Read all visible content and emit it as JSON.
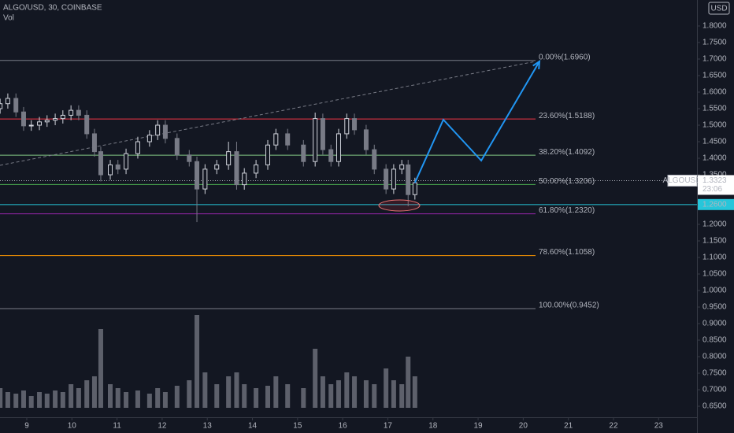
{
  "chart_data": {
    "type": "candlestick",
    "title": "ALGO/USD, 30, COINBASE",
    "currency": "USD",
    "volume_label": "Vol",
    "xlim": [
      8.407,
      23.85
    ],
    "xticks": [
      9,
      10,
      11,
      12,
      13,
      14,
      15,
      16,
      17,
      18,
      19,
      20,
      21,
      22,
      23
    ],
    "ylim": [
      0.5929,
      1.8786
    ],
    "yticks": [
      {
        "value": 0.65,
        "label": "0.6500"
      },
      {
        "value": 0.7,
        "label": "0.7000"
      },
      {
        "value": 0.75,
        "label": "0.7500"
      },
      {
        "value": 0.8,
        "label": "0.8000"
      },
      {
        "value": 0.85,
        "label": "0.8500"
      },
      {
        "value": 0.9,
        "label": "0.9000"
      },
      {
        "value": 0.95,
        "label": "0.9500"
      },
      {
        "value": 1.0,
        "label": "1.0000"
      },
      {
        "value": 1.05,
        "label": "1.0500"
      },
      {
        "value": 1.1,
        "label": "1.1000"
      },
      {
        "value": 1.15,
        "label": "1.1500"
      },
      {
        "value": 1.2,
        "label": "1.2000"
      },
      {
        "value": 1.25,
        "label": "1.2500"
      },
      {
        "value": 1.3,
        "label": "1.3000"
      },
      {
        "value": 1.35,
        "label": "1.3500"
      },
      {
        "value": 1.4,
        "label": "1.4000"
      },
      {
        "value": 1.45,
        "label": "1.4500"
      },
      {
        "value": 1.5,
        "label": "1.5000"
      },
      {
        "value": 1.55,
        "label": "1.5500"
      },
      {
        "value": 1.6,
        "label": "1.6000"
      },
      {
        "value": 1.65,
        "label": "1.6500"
      },
      {
        "value": 1.7,
        "label": "1.7000"
      },
      {
        "value": 1.75,
        "label": "1.7500"
      },
      {
        "value": 1.8,
        "label": "1.8000"
      }
    ],
    "grid": false,
    "up_color": "#d1d4dc",
    "down_color": "#787b86",
    "candles": {
      "x": [
        8.41,
        8.58,
        8.76,
        8.93,
        9.1,
        9.28,
        9.45,
        9.63,
        9.8,
        9.98,
        10.15,
        10.33,
        10.5,
        10.64,
        10.85,
        11.02,
        11.2,
        11.46,
        11.72,
        11.9,
        12.07,
        12.33,
        12.6,
        12.77,
        12.95,
        13.21,
        13.47,
        13.65,
        13.82,
        14.08,
        14.34,
        14.52,
        14.78,
        15.13,
        15.39,
        15.56,
        15.74,
        15.91,
        16.09,
        16.26,
        16.52,
        16.7,
        16.96,
        17.13,
        17.31,
        17.45,
        17.6
      ],
      "open": [
        1.55,
        1.565,
        1.581,
        1.54,
        1.498,
        1.5,
        1.51,
        1.515,
        1.52,
        1.53,
        1.545,
        1.53,
        1.474,
        1.42,
        1.35,
        1.38,
        1.367,
        1.414,
        1.45,
        1.47,
        1.5,
        1.46,
        1.41,
        1.39,
        1.307,
        1.367,
        1.38,
        1.42,
        1.32,
        1.355,
        1.38,
        1.44,
        1.474,
        1.44,
        1.39,
        1.52,
        1.426,
        1.39,
        1.474,
        1.52,
        1.486,
        1.426,
        1.367,
        1.307,
        1.367,
        1.38,
        1.29
      ],
      "high": [
        1.58,
        1.596,
        1.596,
        1.555,
        1.515,
        1.525,
        1.53,
        1.535,
        1.545,
        1.56,
        1.56,
        1.545,
        1.489,
        1.435,
        1.395,
        1.395,
        1.429,
        1.465,
        1.485,
        1.515,
        1.515,
        1.475,
        1.425,
        1.405,
        1.382,
        1.395,
        1.45,
        1.45,
        1.37,
        1.395,
        1.455,
        1.489,
        1.489,
        1.455,
        1.538,
        1.535,
        1.441,
        1.489,
        1.535,
        1.535,
        1.501,
        1.441,
        1.382,
        1.382,
        1.395,
        1.395,
        1.341
      ],
      "low": [
        1.535,
        1.55,
        1.525,
        1.483,
        1.483,
        1.485,
        1.495,
        1.5,
        1.505,
        1.515,
        1.515,
        1.459,
        1.405,
        1.33,
        1.335,
        1.352,
        1.352,
        1.399,
        1.435,
        1.455,
        1.445,
        1.395,
        1.375,
        1.207,
        1.292,
        1.352,
        1.365,
        1.305,
        1.305,
        1.34,
        1.365,
        1.425,
        1.425,
        1.375,
        1.375,
        1.411,
        1.375,
        1.375,
        1.459,
        1.471,
        1.411,
        1.352,
        1.292,
        1.292,
        1.352,
        1.255,
        1.275
      ],
      "close": [
        1.565,
        1.581,
        1.54,
        1.498,
        1.5,
        1.51,
        1.515,
        1.52,
        1.53,
        1.545,
        1.53,
        1.474,
        1.42,
        1.35,
        1.38,
        1.367,
        1.414,
        1.45,
        1.47,
        1.5,
        1.46,
        1.41,
        1.39,
        1.307,
        1.367,
        1.38,
        1.42,
        1.32,
        1.355,
        1.38,
        1.44,
        1.474,
        1.44,
        1.39,
        1.52,
        1.426,
        1.39,
        1.474,
        1.52,
        1.486,
        1.426,
        1.367,
        1.307,
        1.367,
        1.38,
        1.29,
        1.326
      ]
    },
    "volume": [
      25,
      20,
      18,
      22,
      15,
      20,
      18,
      22,
      20,
      30,
      25,
      35,
      40,
      100,
      30,
      25,
      20,
      22,
      18,
      25,
      20,
      28,
      35,
      118,
      45,
      30,
      40,
      45,
      30,
      25,
      28,
      40,
      30,
      25,
      75,
      40,
      30,
      35,
      45,
      40,
      35,
      30,
      50,
      35,
      30,
      65,
      40
    ],
    "volume_lim": [
      0,
      130
    ],
    "volume_color": "#5d606b",
    "fib_levels": [
      {
        "label": "0.00%(1.6960)",
        "value": 1.696,
        "color": "#787b86"
      },
      {
        "label": "23.60%(1.5188)",
        "value": 1.5188,
        "color": "#f23645"
      },
      {
        "label": "38.20%(1.4092)",
        "value": 1.4092,
        "color": "#81c784"
      },
      {
        "label": "50.00%(1.3206)",
        "value": 1.3206,
        "color": "#4caf50"
      },
      {
        "label": "61.80%(1.2320)",
        "value": 1.232,
        "color": "#9c27b0"
      },
      {
        "label": "78.60%(1.1058)",
        "value": 1.1058,
        "color": "#ff9800"
      },
      {
        "label": "100.00%(0.9452)",
        "value": 0.9452,
        "color": "#787b86"
      }
    ],
    "trendline": {
      "x": [
        8.407,
        20.27
      ],
      "y": [
        1.3786,
        1.6929
      ],
      "color": "#787b86"
    },
    "projection": {
      "x": [
        17.6,
        18.23,
        19.07,
        20.36
      ],
      "y": [
        1.326,
        1.5167,
        1.3929,
        1.6929
      ],
      "color": "#2196f3"
    },
    "support": {
      "value": 1.26,
      "label": "1.2600",
      "color": "#26c6da"
    },
    "last_price": {
      "symbol": "ALGOUSD",
      "value": 1.3323,
      "label": "1.3323",
      "countdown": "23:06"
    }
  }
}
